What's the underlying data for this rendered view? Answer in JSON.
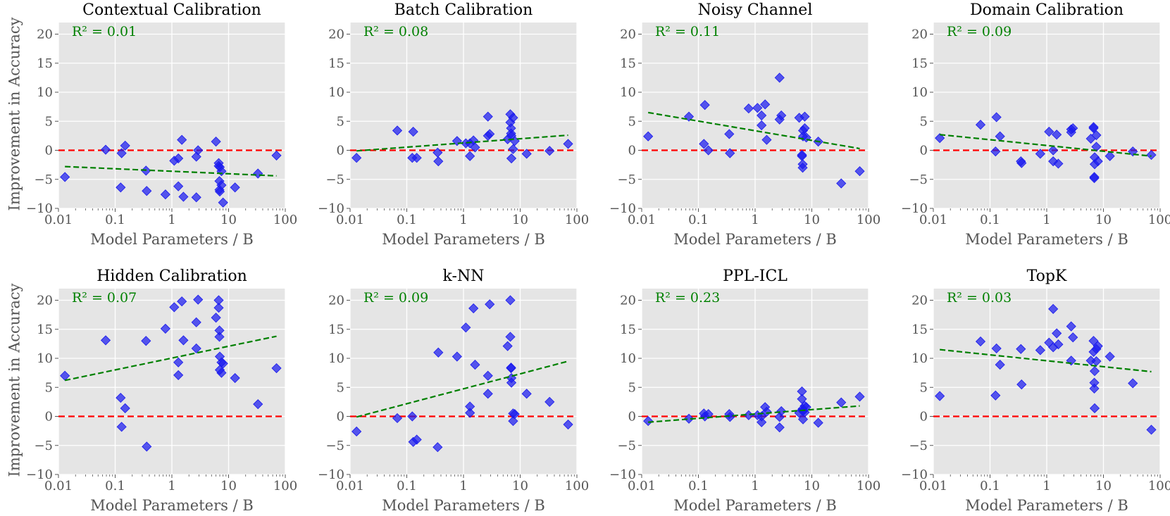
{
  "ylabel": "Improvement in Accuracy",
  "xlabel": "Model Parameters / B",
  "colors": {
    "background": "#e5e5e5",
    "grid": "#ffffff",
    "points": "#1a1aee",
    "trend": "#008000",
    "zero_line": "#ff0000",
    "r2_text": "#008000"
  },
  "chart_data": [
    {
      "type": "scatter",
      "title": "Contextual Calibration",
      "xlabel": "Model Parameters / B",
      "ylabel": "Improvement in Accuracy",
      "xscale": "log",
      "xlim": [
        0.01,
        100
      ],
      "ylim": [
        -10,
        22
      ],
      "xticks": [
        "0.01",
        "0.1",
        "1",
        "10",
        "100"
      ],
      "yticks": [
        -10,
        -5,
        0,
        5,
        10,
        15,
        20
      ],
      "r2": "R² = 0.01",
      "trend": {
        "x": [
          0.013,
          70
        ],
        "y": [
          -2.8,
          -4.4
        ]
      },
      "points": [
        [
          0.013,
          -4.6
        ],
        [
          0.068,
          0.1
        ],
        [
          0.125,
          -6.4
        ],
        [
          0.13,
          -0.5
        ],
        [
          0.15,
          0.8
        ],
        [
          0.35,
          -3.5
        ],
        [
          0.36,
          -7.0
        ],
        [
          0.77,
          -7.6
        ],
        [
          1.1,
          -1.8
        ],
        [
          1.3,
          -6.2
        ],
        [
          1.3,
          -1.4
        ],
        [
          1.5,
          1.8
        ],
        [
          1.6,
          -8.0
        ],
        [
          2.7,
          -8.1
        ],
        [
          2.7,
          -1.1
        ],
        [
          2.9,
          0.0
        ],
        [
          6.0,
          1.5
        ],
        [
          6.7,
          -2.2
        ],
        [
          6.7,
          -2.7
        ],
        [
          6.9,
          -5.3
        ],
        [
          6.9,
          -6.8
        ],
        [
          7.0,
          -7.1
        ],
        [
          7.0,
          -2.9
        ],
        [
          7.5,
          -6.0
        ],
        [
          7.5,
          -3.6
        ],
        [
          8.0,
          -9.0
        ],
        [
          13.0,
          -6.4
        ],
        [
          33.0,
          -4.0
        ],
        [
          70.0,
          -0.9
        ]
      ]
    },
    {
      "type": "scatter",
      "title": "Batch Calibration",
      "xlabel": "Model Parameters / B",
      "ylabel": "Improvement in Accuracy",
      "xscale": "log",
      "xlim": [
        0.01,
        100
      ],
      "ylim": [
        -10,
        22
      ],
      "xticks": [
        "0.01",
        "0.1",
        "1",
        "10",
        "100"
      ],
      "yticks": [
        -10,
        -5,
        0,
        5,
        10,
        15,
        20
      ],
      "r2": "R² = 0.08",
      "trend": {
        "x": [
          0.013,
          70
        ],
        "y": [
          -0.1,
          2.6
        ]
      },
      "points": [
        [
          0.013,
          -1.3
        ],
        [
          0.068,
          3.4
        ],
        [
          0.125,
          -1.3
        ],
        [
          0.13,
          3.2
        ],
        [
          0.15,
          -1.3
        ],
        [
          0.35,
          -0.4
        ],
        [
          0.36,
          -1.9
        ],
        [
          0.77,
          1.6
        ],
        [
          1.1,
          1.2
        ],
        [
          1.3,
          1.2
        ],
        [
          1.3,
          -1.0
        ],
        [
          1.5,
          1.7
        ],
        [
          1.6,
          0.5
        ],
        [
          2.7,
          5.8
        ],
        [
          2.7,
          2.5
        ],
        [
          2.9,
          2.8
        ],
        [
          6.0,
          1.9
        ],
        [
          6.7,
          6.2
        ],
        [
          6.7,
          4.8
        ],
        [
          6.9,
          3.8
        ],
        [
          6.9,
          2.9
        ],
        [
          7.0,
          2.5
        ],
        [
          7.0,
          -1.4
        ],
        [
          7.5,
          0.2
        ],
        [
          7.5,
          5.6
        ],
        [
          8.0,
          1.6
        ],
        [
          13.0,
          -0.6
        ],
        [
          33.0,
          -0.1
        ],
        [
          70.0,
          1.1
        ]
      ]
    },
    {
      "type": "scatter",
      "title": "Noisy Channel",
      "xlabel": "Model Parameters / B",
      "ylabel": "Improvement in Accuracy",
      "xscale": "log",
      "xlim": [
        0.01,
        100
      ],
      "ylim": [
        -10,
        22
      ],
      "xticks": [
        "0.01",
        "0.1",
        "1",
        "10",
        "100"
      ],
      "yticks": [
        -10,
        -5,
        0,
        5,
        10,
        15,
        20
      ],
      "r2": "R² = 0.11",
      "trend": {
        "x": [
          0.013,
          70
        ],
        "y": [
          6.5,
          0.3
        ]
      },
      "points": [
        [
          0.013,
          2.4
        ],
        [
          0.068,
          5.8
        ],
        [
          0.125,
          1.1
        ],
        [
          0.13,
          7.8
        ],
        [
          0.15,
          0.0
        ],
        [
          0.35,
          2.8
        ],
        [
          0.36,
          -0.5
        ],
        [
          0.77,
          7.2
        ],
        [
          1.1,
          7.3
        ],
        [
          1.3,
          4.3
        ],
        [
          1.3,
          6.0
        ],
        [
          1.5,
          7.9
        ],
        [
          1.6,
          1.8
        ],
        [
          2.7,
          12.5
        ],
        [
          2.7,
          5.3
        ],
        [
          2.9,
          6.0
        ],
        [
          6.0,
          5.6
        ],
        [
          6.7,
          -1.0
        ],
        [
          6.7,
          -0.8
        ],
        [
          6.9,
          -2.4
        ],
        [
          6.9,
          -3.0
        ],
        [
          7.0,
          3.4
        ],
        [
          7.0,
          2.4
        ],
        [
          7.5,
          5.8
        ],
        [
          7.5,
          3.8
        ],
        [
          8.0,
          2.2
        ],
        [
          13.0,
          1.5
        ],
        [
          33.0,
          -5.7
        ],
        [
          70.0,
          -3.6
        ]
      ]
    },
    {
      "type": "scatter",
      "title": "Domain Calibration",
      "xlabel": "Model Parameters / B",
      "ylabel": "Improvement in Accuracy",
      "xscale": "log",
      "xlim": [
        0.01,
        100
      ],
      "ylim": [
        -10,
        22
      ],
      "xticks": [
        "0.01",
        "0.1",
        "1",
        "10",
        "100"
      ],
      "yticks": [
        -10,
        -5,
        0,
        5,
        10,
        15,
        20
      ],
      "r2": "R² = 0.09",
      "trend": {
        "x": [
          0.013,
          70
        ],
        "y": [
          2.7,
          -1.0
        ]
      },
      "points": [
        [
          0.013,
          2.1
        ],
        [
          0.068,
          4.4
        ],
        [
          0.125,
          -0.2
        ],
        [
          0.13,
          5.7
        ],
        [
          0.15,
          2.4
        ],
        [
          0.35,
          -1.9
        ],
        [
          0.36,
          -2.2
        ],
        [
          0.77,
          -0.6
        ],
        [
          1.1,
          3.2
        ],
        [
          1.3,
          -1.9
        ],
        [
          1.3,
          0.0
        ],
        [
          1.5,
          2.7
        ],
        [
          1.6,
          -2.3
        ],
        [
          2.7,
          3.1
        ],
        [
          2.7,
          3.6
        ],
        [
          2.9,
          3.8
        ],
        [
          6.0,
          2.0
        ],
        [
          6.7,
          3.8
        ],
        [
          6.7,
          4.0
        ],
        [
          6.9,
          -4.6
        ],
        [
          6.9,
          -4.8
        ],
        [
          7.0,
          -1.2
        ],
        [
          7.0,
          -2.4
        ],
        [
          7.5,
          2.6
        ],
        [
          7.5,
          0.6
        ],
        [
          8.0,
          -1.9
        ],
        [
          13.0,
          -1.0
        ],
        [
          33.0,
          -0.2
        ],
        [
          70.0,
          -0.8
        ]
      ]
    },
    {
      "type": "scatter",
      "title": "Hidden Calibration",
      "xlabel": "Model Parameters / B",
      "ylabel": "Improvement in Accuracy",
      "xscale": "log",
      "xlim": [
        0.01,
        100
      ],
      "ylim": [
        -10,
        22
      ],
      "xticks": [
        "0.01",
        "0.1",
        "1",
        "10",
        "100"
      ],
      "yticks": [
        -10,
        -5,
        0,
        5,
        10,
        15,
        20
      ],
      "r2": "R² = 0.07",
      "trend": {
        "x": [
          0.013,
          70
        ],
        "y": [
          6.2,
          13.8
        ]
      },
      "points": [
        [
          0.013,
          7.0
        ],
        [
          0.068,
          13.1
        ],
        [
          0.125,
          3.2
        ],
        [
          0.13,
          -1.8
        ],
        [
          0.15,
          1.4
        ],
        [
          0.35,
          13.0
        ],
        [
          0.36,
          -5.2
        ],
        [
          0.77,
          15.1
        ],
        [
          1.1,
          18.8
        ],
        [
          1.3,
          7.1
        ],
        [
          1.3,
          9.3
        ],
        [
          1.5,
          19.8
        ],
        [
          1.6,
          13.1
        ],
        [
          2.7,
          16.2
        ],
        [
          2.7,
          11.7
        ],
        [
          2.9,
          20.1
        ],
        [
          6.0,
          17.0
        ],
        [
          6.7,
          20.0
        ],
        [
          6.7,
          18.7
        ],
        [
          6.9,
          14.8
        ],
        [
          6.9,
          13.7
        ],
        [
          7.0,
          10.3
        ],
        [
          7.0,
          8.0
        ],
        [
          7.5,
          9.3
        ],
        [
          7.5,
          7.5
        ],
        [
          8.0,
          9.1
        ],
        [
          13.0,
          6.6
        ],
        [
          33.0,
          2.1
        ],
        [
          70.0,
          8.3
        ]
      ]
    },
    {
      "type": "scatter",
      "title": "k-NN",
      "xlabel": "Model Parameters / B",
      "ylabel": "Improvement in Accuracy",
      "xscale": "log",
      "xlim": [
        0.01,
        100
      ],
      "ylim": [
        -10,
        22
      ],
      "xticks": [
        "0.01",
        "0.1",
        "1",
        "10",
        "100"
      ],
      "yticks": [
        -10,
        -5,
        0,
        5,
        10,
        15,
        20
      ],
      "r2": "R² = 0.09",
      "trend": {
        "x": [
          0.013,
          70
        ],
        "y": [
          -0.1,
          9.5
        ]
      },
      "points": [
        [
          0.013,
          -2.6
        ],
        [
          0.068,
          -0.3
        ],
        [
          0.125,
          0.0
        ],
        [
          0.13,
          -4.4
        ],
        [
          0.15,
          -4.0
        ],
        [
          0.35,
          -5.3
        ],
        [
          0.36,
          11.0
        ],
        [
          0.77,
          10.3
        ],
        [
          1.1,
          15.3
        ],
        [
          1.3,
          1.7
        ],
        [
          1.3,
          0.6
        ],
        [
          1.5,
          18.6
        ],
        [
          1.6,
          8.9
        ],
        [
          2.7,
          7.0
        ],
        [
          2.7,
          3.9
        ],
        [
          2.9,
          19.3
        ],
        [
          6.0,
          12.1
        ],
        [
          6.7,
          20.0
        ],
        [
          6.7,
          13.7
        ],
        [
          6.9,
          8.3
        ],
        [
          6.9,
          8.4
        ],
        [
          7.0,
          6.6
        ],
        [
          7.0,
          5.8
        ],
        [
          7.5,
          0.5
        ],
        [
          7.5,
          -0.8
        ],
        [
          8.0,
          0.4
        ],
        [
          13.0,
          3.9
        ],
        [
          33.0,
          2.5
        ],
        [
          70.0,
          -1.4
        ]
      ]
    },
    {
      "type": "scatter",
      "title": "PPL-ICL",
      "xlabel": "Model Parameters / B",
      "ylabel": "Improvement in Accuracy",
      "xscale": "log",
      "xlim": [
        0.01,
        100
      ],
      "ylim": [
        -10,
        22
      ],
      "xticks": [
        "0.01",
        "0.1",
        "1",
        "10",
        "100"
      ],
      "yticks": [
        -10,
        -5,
        0,
        5,
        10,
        15,
        20
      ],
      "r2": "R² = 0.23",
      "trend": {
        "x": [
          0.013,
          70
        ],
        "y": [
          -1.0,
          1.8
        ]
      },
      "points": [
        [
          0.013,
          -0.8
        ],
        [
          0.068,
          -0.4
        ],
        [
          0.125,
          0.5
        ],
        [
          0.13,
          0.0
        ],
        [
          0.15,
          0.4
        ],
        [
          0.35,
          0.4
        ],
        [
          0.36,
          -0.1
        ],
        [
          0.77,
          0.2
        ],
        [
          1.1,
          0.2
        ],
        [
          1.3,
          -1.0
        ],
        [
          1.3,
          0.0
        ],
        [
          1.5,
          1.6
        ],
        [
          1.6,
          0.8
        ],
        [
          2.7,
          -1.9
        ],
        [
          2.7,
          -0.1
        ],
        [
          2.9,
          0.9
        ],
        [
          6.0,
          0.6
        ],
        [
          6.7,
          4.3
        ],
        [
          6.7,
          3.0
        ],
        [
          6.9,
          1.3
        ],
        [
          6.9,
          1.0
        ],
        [
          7.0,
          0.9
        ],
        [
          7.0,
          -0.5
        ],
        [
          7.5,
          1.8
        ],
        [
          7.5,
          0.7
        ],
        [
          8.0,
          1.6
        ],
        [
          13.0,
          -1.1
        ],
        [
          33.0,
          2.4
        ],
        [
          70.0,
          3.4
        ]
      ]
    },
    {
      "type": "scatter",
      "title": "TopK",
      "xlabel": "Model Parameters / B",
      "ylabel": "Improvement in Accuracy",
      "xscale": "log",
      "xlim": [
        0.01,
        100
      ],
      "ylim": [
        -10,
        22
      ],
      "xticks": [
        "0.01",
        "0.1",
        "1",
        "10",
        "100"
      ],
      "yticks": [
        -10,
        -5,
        0,
        5,
        10,
        15,
        20
      ],
      "r2": "R² = 0.03",
      "trend": {
        "x": [
          0.013,
          70
        ],
        "y": [
          11.5,
          7.7
        ]
      },
      "points": [
        [
          0.013,
          3.5
        ],
        [
          0.068,
          12.9
        ],
        [
          0.125,
          3.6
        ],
        [
          0.13,
          11.7
        ],
        [
          0.15,
          8.9
        ],
        [
          0.35,
          11.6
        ],
        [
          0.36,
          5.5
        ],
        [
          0.77,
          11.4
        ],
        [
          1.1,
          12.7
        ],
        [
          1.3,
          18.5
        ],
        [
          1.3,
          11.9
        ],
        [
          1.5,
          14.3
        ],
        [
          1.6,
          12.4
        ],
        [
          2.7,
          15.5
        ],
        [
          2.7,
          9.6
        ],
        [
          2.9,
          13.6
        ],
        [
          6.0,
          9.6
        ],
        [
          6.7,
          13.0
        ],
        [
          6.7,
          11.1
        ],
        [
          6.9,
          5.8
        ],
        [
          6.9,
          4.8
        ],
        [
          7.0,
          7.8
        ],
        [
          7.0,
          1.4
        ],
        [
          7.5,
          11.6
        ],
        [
          7.5,
          9.5
        ],
        [
          8.0,
          12.1
        ],
        [
          13.0,
          10.3
        ],
        [
          33.0,
          5.7
        ],
        [
          70.0,
          -2.3
        ]
      ]
    }
  ]
}
